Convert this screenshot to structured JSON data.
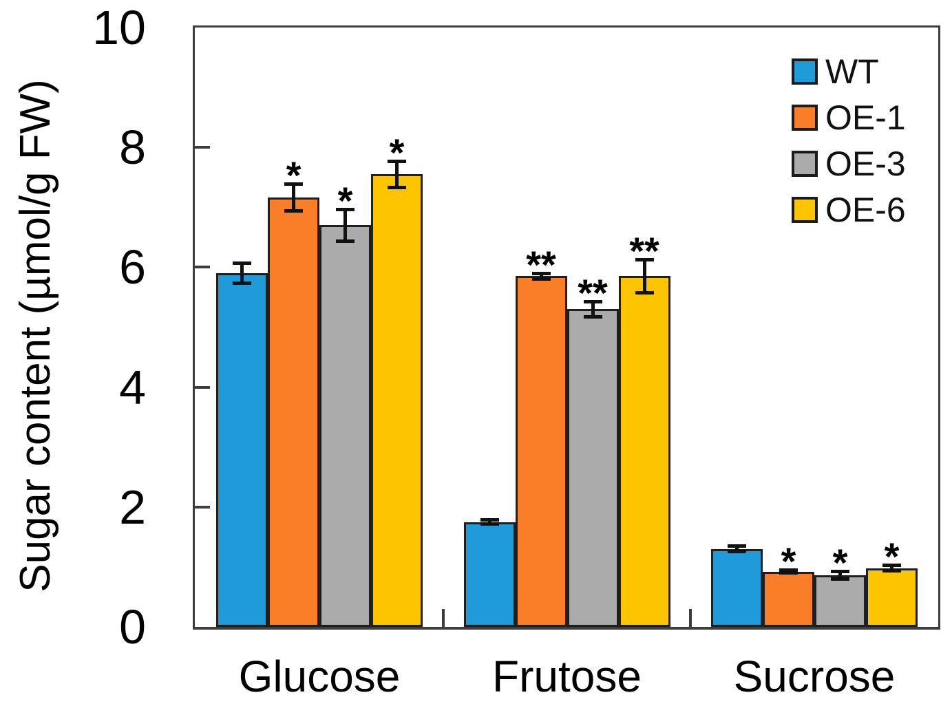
{
  "chart_data": {
    "type": "bar",
    "title": "",
    "xlabel": "",
    "ylabel": "Sugar content (µmol/g FW)",
    "ylim": [
      0,
      10
    ],
    "yticks": [
      0,
      2,
      4,
      6,
      8,
      10
    ],
    "grid": false,
    "error_bars": true,
    "categories": [
      "Glucose",
      "Frutose",
      "Sucrose"
    ],
    "series": [
      {
        "name": "WT",
        "color": "#1F9BD9",
        "values": [
          5.9,
          1.75,
          1.3
        ],
        "errors": [
          0.17,
          0.04,
          0.05
        ],
        "significance": [
          "",
          "",
          ""
        ]
      },
      {
        "name": "OE-1",
        "color": "#F97E27",
        "values": [
          7.16,
          5.85,
          0.92
        ],
        "errors": [
          0.23,
          0.05,
          0.03
        ],
        "significance": [
          "*",
          "**",
          "*"
        ]
      },
      {
        "name": "OE-3",
        "color": "#ABABAB",
        "values": [
          6.7,
          5.3,
          0.86
        ],
        "errors": [
          0.27,
          0.13,
          0.07
        ],
        "significance": [
          "*",
          "**",
          "*"
        ]
      },
      {
        "name": "OE-6",
        "color": "#FDC500",
        "values": [
          7.55,
          5.85,
          0.98
        ],
        "errors": [
          0.22,
          0.28,
          0.05
        ],
        "significance": [
          "*",
          "**",
          "*"
        ]
      }
    ],
    "legend": {
      "position": "top-right",
      "entries": [
        "WT",
        "OE-1",
        "OE-3",
        "OE-6"
      ]
    }
  }
}
